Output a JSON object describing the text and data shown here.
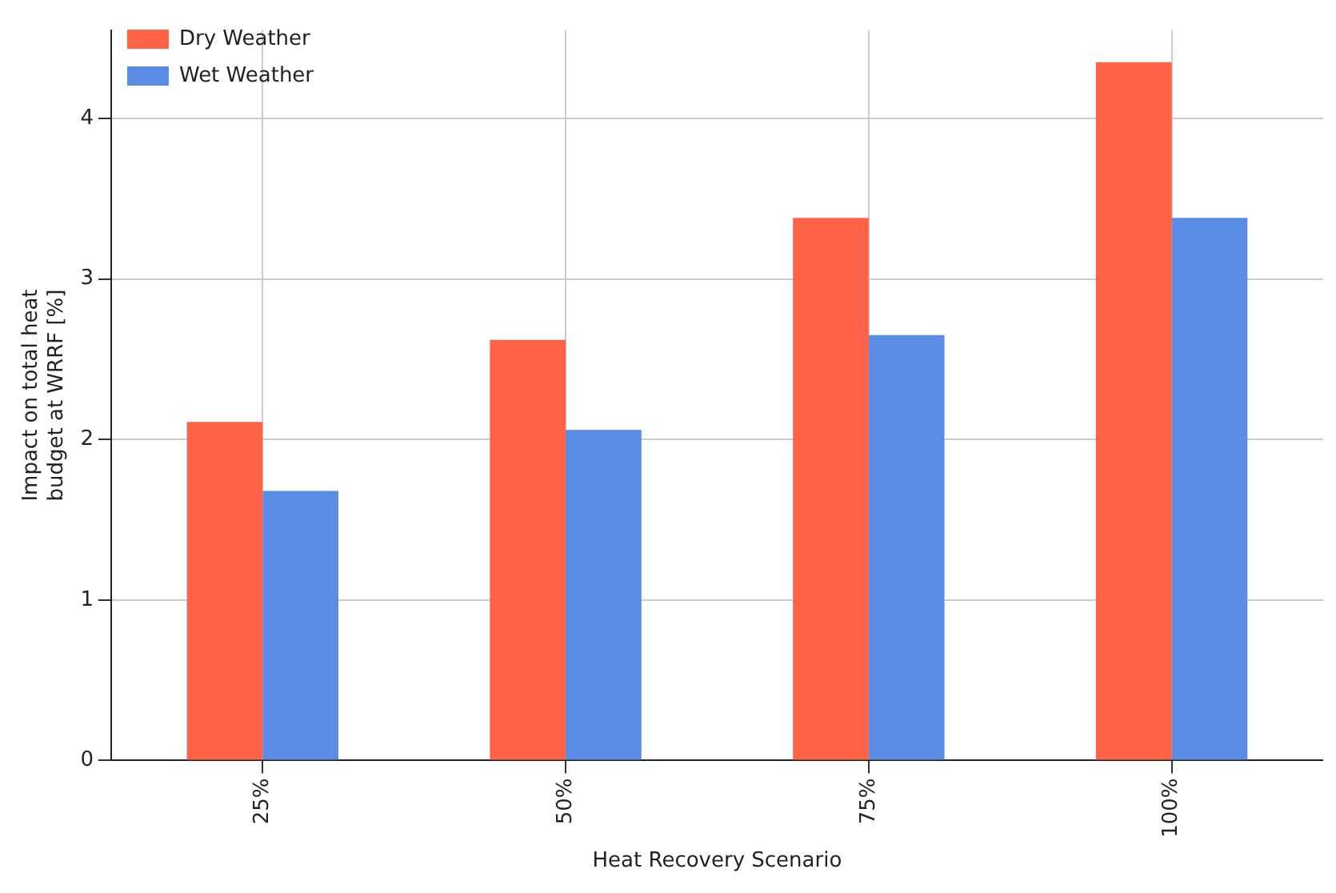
{
  "chart_data": {
    "type": "bar",
    "xlabel": "Heat Recovery Scenario",
    "ylabel": "Impact on total heat\nbudget at WRRF [%]",
    "categories": [
      "25%",
      "50%",
      "75%",
      "100%"
    ],
    "series": [
      {
        "name": "Dry Weather",
        "color": "#ff6347",
        "values": [
          2.11,
          2.62,
          3.38,
          4.35
        ]
      },
      {
        "name": "Wet Weather",
        "color": "#5a8ce6",
        "values": [
          1.68,
          2.06,
          2.65,
          3.38
        ]
      }
    ],
    "ylim": [
      0,
      4.55
    ],
    "yticks": [
      0,
      1,
      2,
      3,
      4
    ],
    "grid": true,
    "legend": "top left"
  }
}
